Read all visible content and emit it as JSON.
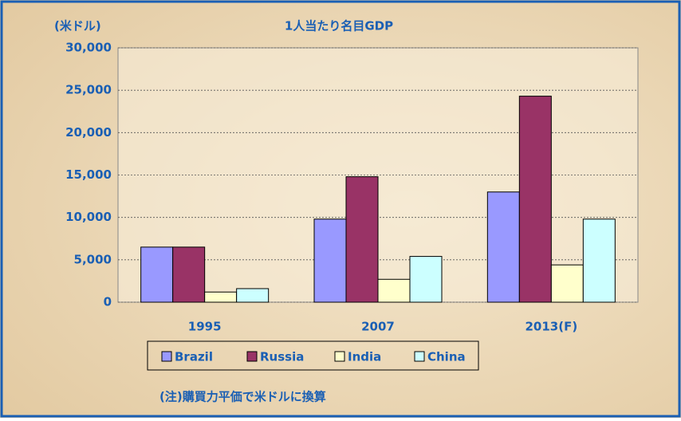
{
  "chart_data": {
    "type": "bar",
    "title": "1人当たり名目GDP",
    "y_label": "(米ドル)",
    "footnote": "(注)購買力平価で米ドルに換算",
    "categories": [
      "1995",
      "2007",
      "2013(F)"
    ],
    "series": [
      {
        "name": "Brazil",
        "color": "#9999ff",
        "values": [
          6500,
          9800,
          13000
        ]
      },
      {
        "name": "Russia",
        "color": "#993366",
        "values": [
          6500,
          14800,
          24300
        ]
      },
      {
        "name": "India",
        "color": "#ffffcc",
        "values": [
          1200,
          2700,
          4400
        ]
      },
      {
        "name": "China",
        "color": "#ccffff",
        "values": [
          1600,
          5400,
          9800
        ]
      }
    ],
    "ylim": [
      0,
      30000
    ],
    "yticks": [
      0,
      {
        "value": 5000,
        "label": "5,000"
      },
      {
        "value": 10000,
        "label": "10,000"
      },
      {
        "value": 15000,
        "label": "15,000"
      },
      {
        "value": 20000,
        "label": "20,000"
      },
      {
        "value": 25000,
        "label": "25,000"
      },
      {
        "value": 30000,
        "label": "30,000"
      }
    ],
    "grid": true
  }
}
